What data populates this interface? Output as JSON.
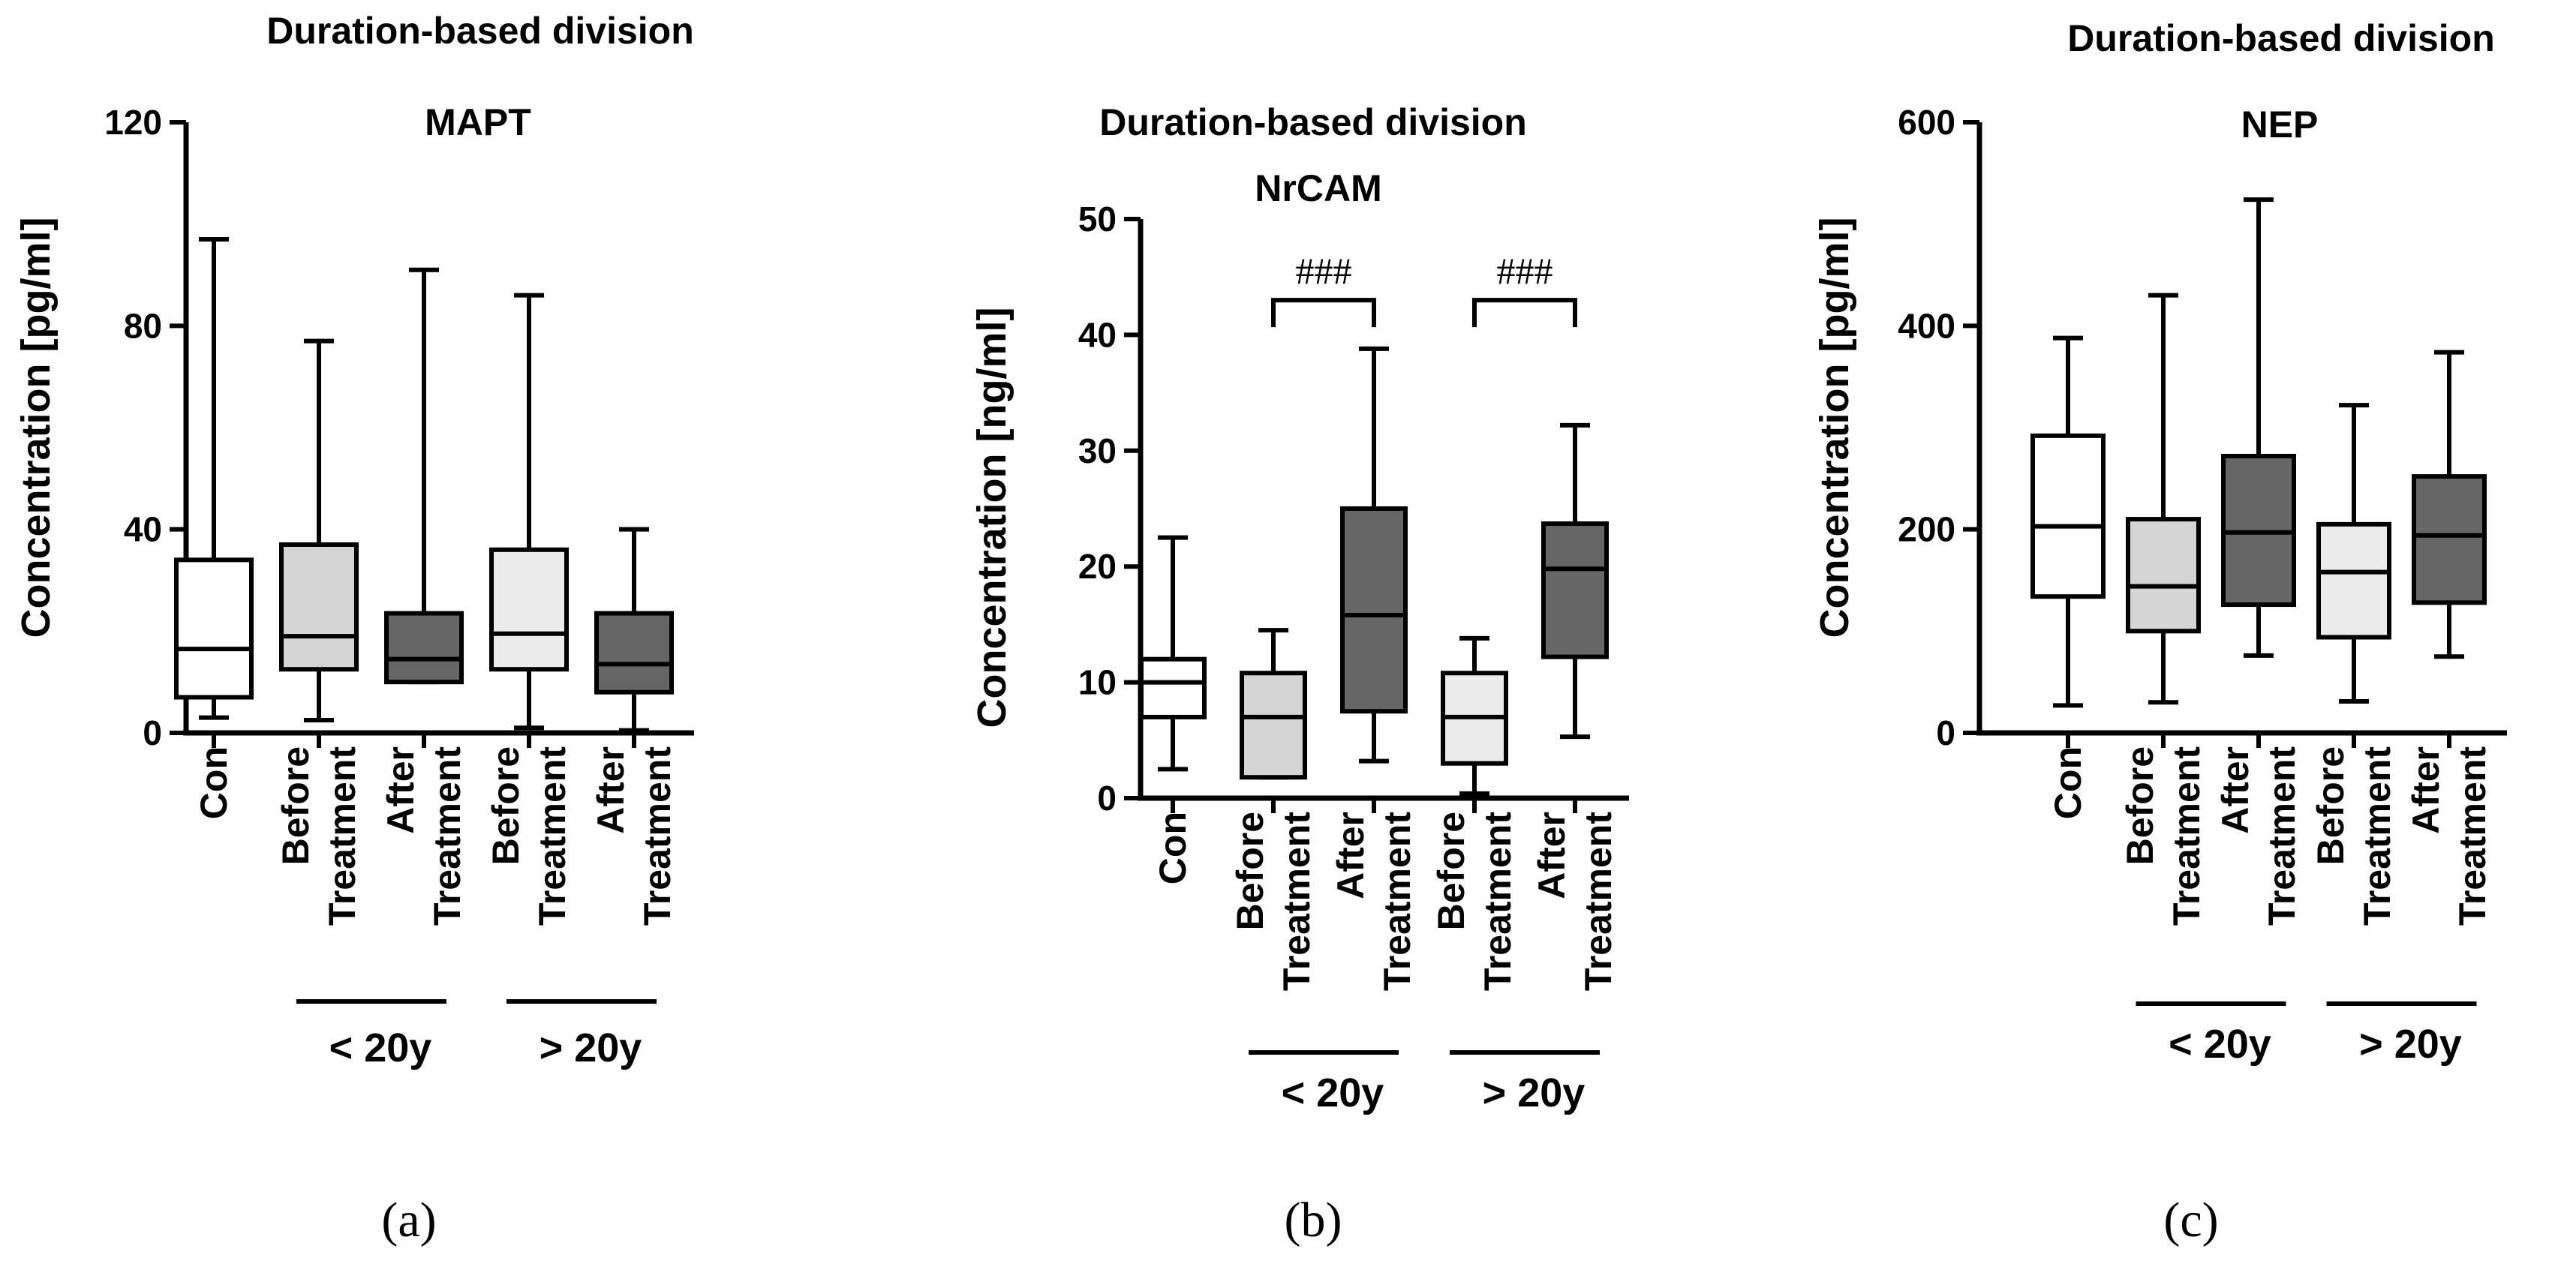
{
  "chart_data": [
    {
      "type": "boxplot",
      "panel_label": "(a)",
      "supertitle": "Duration-based division",
      "title": "MAPT",
      "ylabel": "Concentration [pg/ml]",
      "ylim": [
        0,
        120
      ],
      "yticks": [
        "0",
        "40",
        "80",
        "120"
      ],
      "boxes": [
        {
          "label": [
            "Con"
          ],
          "min": 3,
          "q1": 7,
          "median": 16.5,
          "q3": 34,
          "max": 97,
          "color": "#ffffff"
        },
        {
          "label": [
            "Before",
            "Treatment"
          ],
          "min": 2.5,
          "q1": 12.5,
          "median": 19,
          "q3": 37,
          "max": 77,
          "color": "#d4d4d4"
        },
        {
          "label": [
            "After",
            "Treatment"
          ],
          "min": 10,
          "q1": 10,
          "median": 14.5,
          "q3": 23.5,
          "max": 91,
          "color": "#666666"
        },
        {
          "label": [
            "Before",
            "Treatment"
          ],
          "min": 1,
          "q1": 12.5,
          "median": 19.5,
          "q3": 36,
          "max": 86,
          "color": "#ebebeb"
        },
        {
          "label": [
            "After",
            "Treatment"
          ],
          "min": 0.5,
          "q1": 8,
          "median": 13.5,
          "q3": 23.5,
          "max": 40,
          "color": "#666666"
        }
      ],
      "groups": [
        {
          "label": "< 20y"
        },
        {
          "label": "> 20y"
        }
      ],
      "brackets": []
    },
    {
      "type": "boxplot",
      "panel_label": "(b)",
      "supertitle": "Duration-based division",
      "title": "NrCAM",
      "ylabel": "Concentration [ng/ml]",
      "ylim": [
        0,
        50
      ],
      "yticks": [
        "0",
        "10",
        "20",
        "30",
        "40",
        "50"
      ],
      "boxes": [
        {
          "label": [
            "Con"
          ],
          "min": 2.5,
          "q1": 7,
          "median": 10,
          "q3": 12,
          "max": 22.5,
          "color": "#ffffff"
        },
        {
          "label": [
            "Before",
            "Treatment"
          ],
          "min": 1.8,
          "q1": 1.8,
          "median": 7,
          "q3": 10.8,
          "max": 14.5,
          "color": "#d4d4d4"
        },
        {
          "label": [
            "After",
            "Treatment"
          ],
          "min": 3.2,
          "q1": 7.5,
          "median": 15.8,
          "q3": 25,
          "max": 38.8,
          "color": "#666666"
        },
        {
          "label": [
            "Before",
            "Treatment"
          ],
          "min": 0.4,
          "q1": 3,
          "median": 7,
          "q3": 10.8,
          "max": 13.8,
          "color": "#ebebeb"
        },
        {
          "label": [
            "After",
            "Treatment"
          ],
          "min": 5.3,
          "q1": 12.2,
          "median": 19.8,
          "q3": 23.7,
          "max": 32.2,
          "color": "#666666"
        }
      ],
      "groups": [
        {
          "label": "< 20y"
        },
        {
          "label": "> 20y"
        }
      ],
      "brackets": [
        {
          "from": 1,
          "to": 2,
          "y": 43,
          "label": "###"
        },
        {
          "from": 3,
          "to": 4,
          "y": 43,
          "label": "###"
        }
      ]
    },
    {
      "type": "boxplot",
      "panel_label": "(c)",
      "supertitle": "Duration-based division",
      "title": "NEP",
      "ylabel": "Concentration [pg/ml]",
      "ylim": [
        0,
        600
      ],
      "yticks": [
        "0",
        "200",
        "400",
        "600"
      ],
      "boxes": [
        {
          "label": [
            "Con"
          ],
          "min": 27,
          "q1": 134,
          "median": 203,
          "q3": 292,
          "max": 388,
          "color": "#ffffff"
        },
        {
          "label": [
            "Before",
            "Treatment"
          ],
          "min": 30,
          "q1": 100,
          "median": 144,
          "q3": 210,
          "max": 430,
          "color": "#d4d4d4"
        },
        {
          "label": [
            "After",
            "Treatment"
          ],
          "min": 76,
          "q1": 126,
          "median": 197,
          "q3": 272,
          "max": 524,
          "color": "#666666"
        },
        {
          "label": [
            "Before",
            "Treatment"
          ],
          "min": 31,
          "q1": 94,
          "median": 158,
          "q3": 205,
          "max": 322,
          "color": "#ebebeb"
        },
        {
          "label": [
            "After",
            "Treatment"
          ],
          "min": 75,
          "q1": 128,
          "median": 194,
          "q3": 252,
          "max": 374,
          "color": "#666666"
        }
      ],
      "groups": [
        {
          "label": "< 20y"
        },
        {
          "label": "> 20y"
        }
      ],
      "brackets": []
    }
  ]
}
